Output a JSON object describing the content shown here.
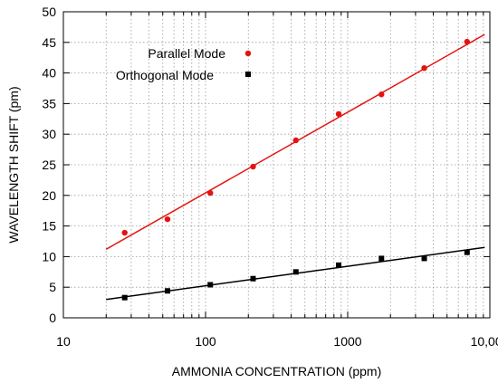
{
  "chart_data": {
    "type": "scatter",
    "title": "",
    "xlabel": "AMMONIA CONCENTRATION (ppm)",
    "ylabel": "WAVELENGTH SHIFT (pm)",
    "x_scale": "log",
    "xlim": [
      10,
      10000
    ],
    "ylim": [
      0,
      50
    ],
    "grid": true,
    "legend_position": "top-left",
    "x_tick_labels": [
      {
        "value": 10,
        "label": "10"
      },
      {
        "value": 100,
        "label": "100"
      },
      {
        "value": 1000,
        "label": "1000"
      },
      {
        "value": 10000,
        "label": "10,000"
      }
    ],
    "y_ticks": [
      0,
      5,
      10,
      15,
      20,
      25,
      30,
      35,
      40,
      45,
      50
    ],
    "series": [
      {
        "name": "Parallel Mode",
        "color": "#e3140f",
        "marker": "circle",
        "x": [
          27,
          54,
          108,
          216,
          432,
          864,
          1728,
          3456,
          6912
        ],
        "y": [
          13.9,
          16.1,
          20.4,
          24.7,
          29.0,
          33.3,
          36.5,
          40.8,
          45.1
        ],
        "fit_line": [
          [
            20,
            11.2
          ],
          [
            9200,
            46.3
          ]
        ]
      },
      {
        "name": "Orthogonal Mode",
        "color": "#000000",
        "marker": "square",
        "x": [
          27,
          54,
          108,
          216,
          432,
          864,
          1728,
          3456,
          6912
        ],
        "y": [
          3.3,
          4.4,
          5.4,
          6.4,
          7.5,
          8.6,
          9.7,
          9.7,
          10.7
        ],
        "fit_line": [
          [
            20,
            3.0
          ],
          [
            9200,
            11.5
          ]
        ]
      }
    ]
  }
}
